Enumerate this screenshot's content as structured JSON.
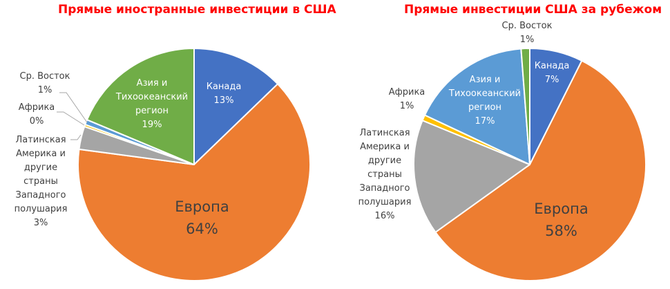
{
  "charts": {
    "left": {
      "title": "Прямые иностранные инвестиции в США",
      "labels": {
        "canada": {
          "name": "Канада",
          "pct": "13%"
        },
        "europe": {
          "name": "Европа",
          "pct": "64%"
        },
        "latam": {
          "line1": "Латинская",
          "line2": "Америка и",
          "line3": "другие",
          "line4": "страны",
          "line5": "Западного",
          "line6": "полушария",
          "pct": "3%"
        },
        "africa": {
          "name": "Африка",
          "pct": "0%"
        },
        "mideast": {
          "name": "Ср. Восток",
          "pct": "1%"
        },
        "asia": {
          "line1": "Азия и",
          "line2": "Тихоокеанский",
          "line3": "регион",
          "pct": "19%"
        }
      }
    },
    "right": {
      "title": "Прямые инвестиции США за рубежом",
      "labels": {
        "canada": {
          "name": "Канада",
          "pct": "7%"
        },
        "europe": {
          "name": "Европа",
          "pct": "58%"
        },
        "latam": {
          "line1": "Латинская",
          "line2": "Америка и",
          "line3": "другие",
          "line4": "страны",
          "line5": "Западного",
          "line6": "полушария",
          "pct": "16%"
        },
        "africa": {
          "name": "Африка",
          "pct": "1%"
        },
        "asia": {
          "line1": "Азия и",
          "line2": "Тихоокеанский",
          "line3": "регион",
          "pct": "17%"
        },
        "mideast": {
          "name": "Ср. Восток",
          "pct": "1%"
        }
      }
    }
  },
  "colors": {
    "canada": "#4472c4",
    "europe": "#ed7d31",
    "latam": "#a5a5a5",
    "africa_left": "#ffc000",
    "mideast_left": "#5b9bd5",
    "asia_left": "#70ad47",
    "africa_right": "#ffc000",
    "asia_right": "#5b9bd5",
    "mideast_right": "#70ad47",
    "title": "#ff0000"
  },
  "chart_data": [
    {
      "type": "pie",
      "title": "Прямые иностранные инвестиции в США",
      "categories": [
        "Канада",
        "Европа",
        "Латинская Америка и другие страны Западного полушария",
        "Африка",
        "Ср. Восток",
        "Азия и Тихоокеанский регион"
      ],
      "values": [
        13,
        64,
        3,
        0,
        1,
        19
      ],
      "colors": [
        "#4472c4",
        "#ed7d31",
        "#a5a5a5",
        "#ffc000",
        "#5b9bd5",
        "#70ad47"
      ],
      "unit": "%"
    },
    {
      "type": "pie",
      "title": "Прямые инвестиции США за рубежом",
      "categories": [
        "Канада",
        "Европа",
        "Латинская Америка и другие страны Западного полушария",
        "Африка",
        "Азия и Тихоокеанский регион",
        "Ср. Восток"
      ],
      "values": [
        7,
        58,
        16,
        1,
        17,
        1
      ],
      "colors": [
        "#4472c4",
        "#ed7d31",
        "#a5a5a5",
        "#ffc000",
        "#5b9bd5",
        "#70ad47"
      ],
      "unit": "%"
    }
  ]
}
